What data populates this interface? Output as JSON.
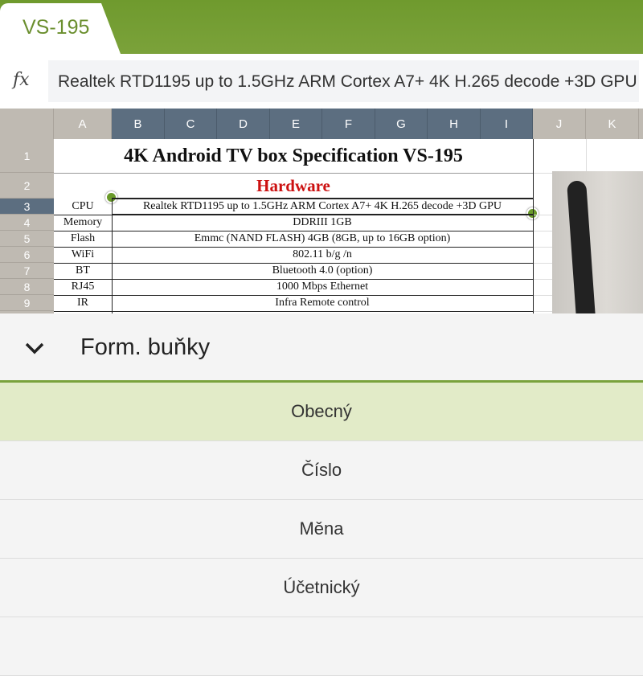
{
  "tab": {
    "label": "VS-195"
  },
  "formula_bar": {
    "fx_label": "fx",
    "value": "Realtek RTD1195   up to 1.5GHz ARM   Cortex A7+ 4K H.265 decode +3D GPU"
  },
  "columns": [
    "A",
    "B",
    "C",
    "D",
    "E",
    "F",
    "G",
    "H",
    "I",
    "J",
    "K"
  ],
  "selected_columns": [
    "B",
    "C",
    "D",
    "E",
    "F",
    "G",
    "H",
    "I"
  ],
  "rows": [
    "1",
    "2",
    "3",
    "4",
    "5",
    "6",
    "7",
    "8",
    "9"
  ],
  "selected_row": "3",
  "sheet": {
    "title": "4K Android TV box Specification        VS-195",
    "section": "Hardware",
    "section_color": "#cc1111",
    "specs": [
      {
        "label": "CPU",
        "value": "Realtek RTD1195   up to 1.5GHz ARM   Cortex A7+ 4K H.265 decode +3D GPU"
      },
      {
        "label": "Memory",
        "value": "DDRIII 1GB"
      },
      {
        "label": "Flash",
        "value": "Emmc (NAND FLASH) 4GB (8GB, up to 16GB option)"
      },
      {
        "label": "WiFi",
        "value": "802.11 b/g /n"
      },
      {
        "label": "BT",
        "value": "Bluetooth 4.0  (option)"
      },
      {
        "label": "RJ45",
        "value": "1000 Mbps Ethernet"
      },
      {
        "label": "IR",
        "value": "Infra Remote control"
      }
    ]
  },
  "panel": {
    "title": "Form. buňky",
    "items": [
      "Obecný",
      "Číslo",
      "Měna",
      "Účetnický"
    ],
    "selected": "Obecný"
  },
  "colors": {
    "accent": "#769e34",
    "header_selected": "#5c6e80",
    "selected_item": "#e2ebc8"
  }
}
